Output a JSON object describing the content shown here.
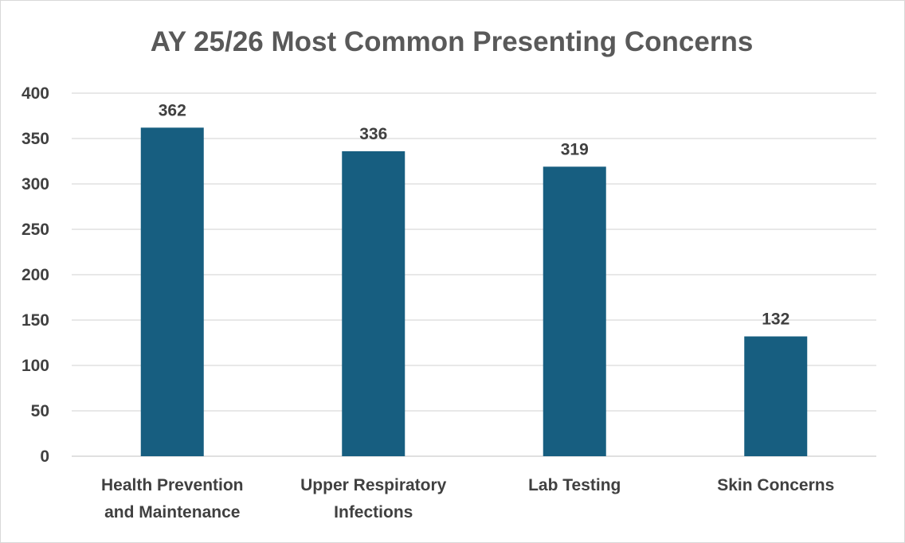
{
  "chart_data": {
    "type": "bar",
    "title": "AY 25/26 Most Common Presenting Concerns",
    "categories": [
      [
        "Health Prevention",
        "and Maintenance"
      ],
      [
        "Upper Respiratory",
        "Infections"
      ],
      [
        "Lab Testing"
      ],
      [
        "Skin Concerns"
      ]
    ],
    "values": [
      362,
      336,
      319,
      132
    ],
    "data_labels": [
      "362",
      "336",
      "319",
      "132"
    ],
    "ylim": [
      0,
      400
    ],
    "yticks": [
      0,
      50,
      100,
      150,
      200,
      250,
      300,
      350,
      400
    ],
    "grid": true,
    "legend": "none",
    "bar_color": "#175e80"
  }
}
